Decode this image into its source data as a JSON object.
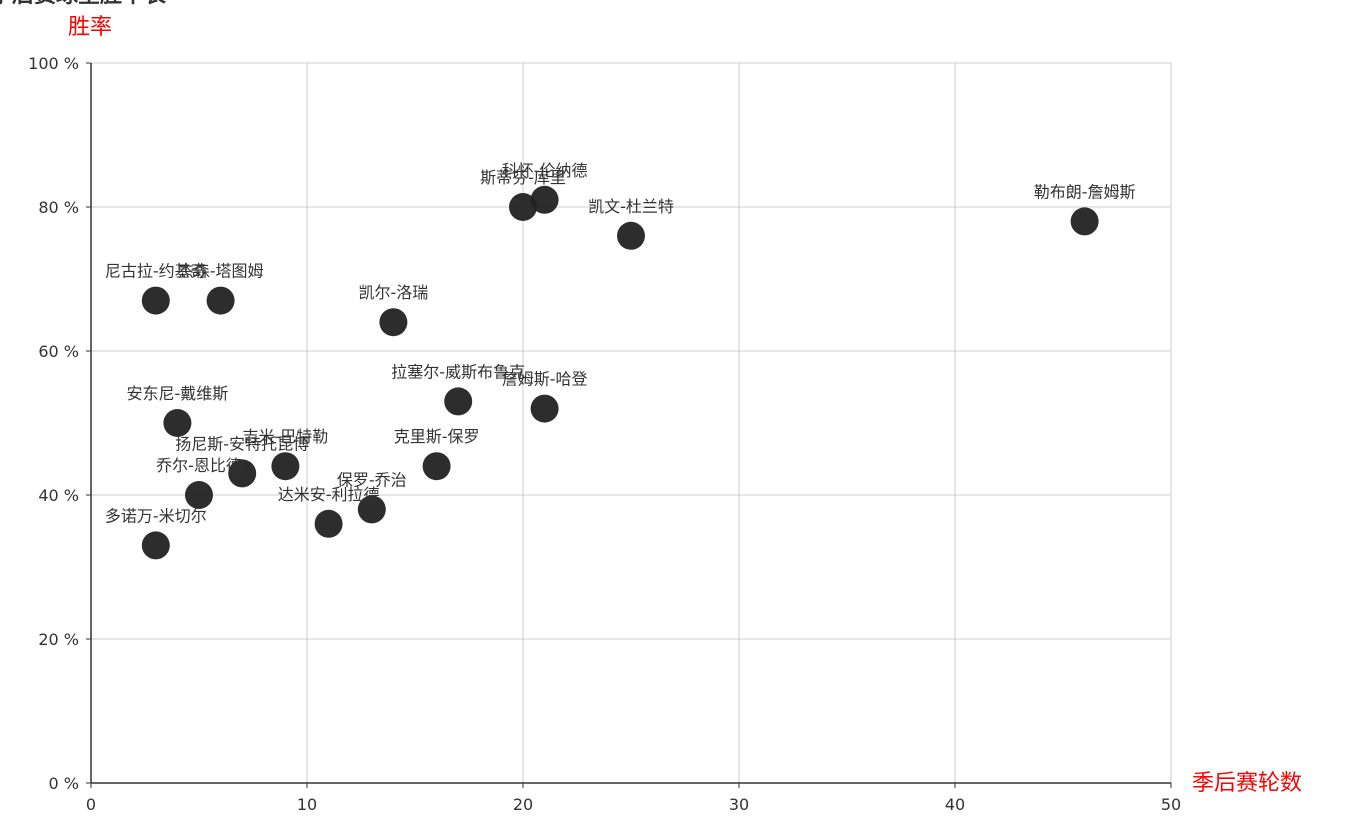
{
  "chart_data": {
    "type": "scatter",
    "title": "季后赛球星胜率表",
    "xlabel": "季后赛轮数",
    "ylabel": "胜率",
    "xlim": [
      0,
      50
    ],
    "ylim": [
      0,
      100
    ],
    "x_ticks": [
      0,
      10,
      20,
      30,
      40,
      50
    ],
    "y_ticks": [
      0,
      20,
      40,
      60,
      80,
      100
    ],
    "y_tick_suffix": " %",
    "grid": true,
    "point_color": "#222222",
    "axis_name_color": "#ff0000",
    "points": [
      {
        "name": "勒布朗-詹姆斯",
        "x": 46,
        "y": 78
      },
      {
        "name": "科怀-伦纳德",
        "x": 21,
        "y": 81
      },
      {
        "name": "斯蒂芬-库里",
        "x": 20,
        "y": 80
      },
      {
        "name": "凯文-杜兰特",
        "x": 25,
        "y": 76
      },
      {
        "name": "尼古拉-约基奇",
        "x": 3,
        "y": 67
      },
      {
        "name": "杰森-塔图姆",
        "x": 6,
        "y": 67
      },
      {
        "name": "凯尔-洛瑞",
        "x": 14,
        "y": 64
      },
      {
        "name": "拉塞尔-威斯布鲁克",
        "x": 17,
        "y": 53
      },
      {
        "name": "詹姆斯-哈登",
        "x": 21,
        "y": 52
      },
      {
        "name": "安东尼-戴维斯",
        "x": 4,
        "y": 50
      },
      {
        "name": "克里斯-保罗",
        "x": 16,
        "y": 44
      },
      {
        "name": "吉米-巴特勒",
        "x": 9,
        "y": 44
      },
      {
        "name": "扬尼斯-安特托昆博",
        "x": 7,
        "y": 43
      },
      {
        "name": "乔尔-恩比德",
        "x": 5,
        "y": 40
      },
      {
        "name": "保罗-乔治",
        "x": 13,
        "y": 38
      },
      {
        "name": "达米安-利拉德",
        "x": 11,
        "y": 36
      },
      {
        "name": "多诺万-米切尔",
        "x": 3,
        "y": 33
      }
    ]
  }
}
